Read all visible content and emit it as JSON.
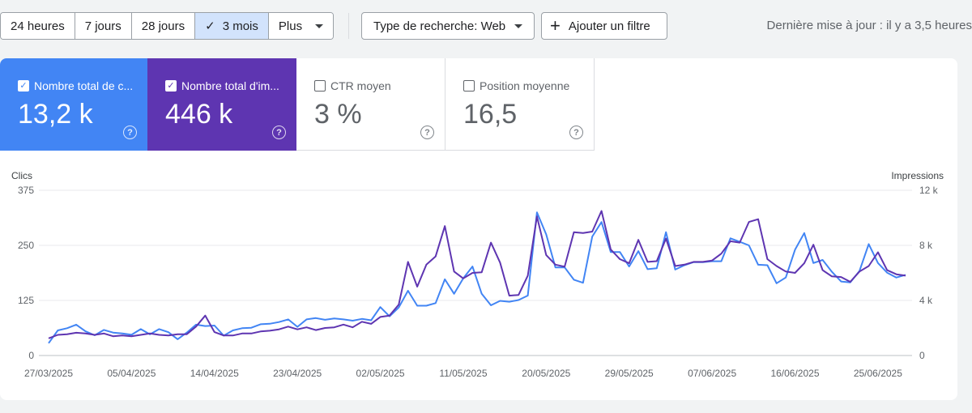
{
  "toolbar": {
    "ranges": [
      {
        "label": "24 heures",
        "selected": false
      },
      {
        "label": "7 jours",
        "selected": false
      },
      {
        "label": "28 jours",
        "selected": false
      },
      {
        "label": "3 mois",
        "selected": true
      },
      {
        "label": "Plus",
        "selected": false
      }
    ],
    "search_type_label": "Type de recherche: Web",
    "add_filter_label": "Ajouter un filtre",
    "last_update": "Dernière mise à jour : il y a 3,5 heures"
  },
  "metrics": {
    "clicks": {
      "label": "Nombre total de c...",
      "value": "13,2 k",
      "checked": true,
      "color": "#4285f4"
    },
    "impressions": {
      "label": "Nombre total d'im...",
      "value": "446 k",
      "checked": true,
      "color": "#5e35b1"
    },
    "ctr": {
      "label": "CTR moyen",
      "value": "3 %",
      "checked": false
    },
    "position": {
      "label": "Position moyenne",
      "value": "16,5",
      "checked": false
    }
  },
  "chart_data": {
    "type": "line",
    "y_left_label": "Clics",
    "y_right_label": "Impressions",
    "y_left_ticks": [
      "375",
      "250",
      "125",
      "0"
    ],
    "y_right_ticks": [
      "12 k",
      "8 k",
      "4 k",
      "0"
    ],
    "ylim_left": [
      0,
      375
    ],
    "ylim_right": [
      0,
      12000
    ],
    "x_ticks": [
      "27/03/2025",
      "05/04/2025",
      "14/04/2025",
      "23/04/2025",
      "02/05/2025",
      "11/05/2025",
      "20/05/2025",
      "29/05/2025",
      "07/06/2025",
      "16/06/2025",
      "25/06/2025"
    ],
    "grid": true,
    "series": [
      {
        "name": "Clics",
        "axis": "left",
        "color": "#4285f4",
        "values": [
          28,
          57,
          62,
          70,
          55,
          46,
          58,
          52,
          50,
          47,
          60,
          48,
          60,
          53,
          37,
          52,
          70,
          67,
          68,
          45,
          57,
          62,
          63,
          71,
          72,
          76,
          82,
          65,
          82,
          85,
          81,
          84,
          82,
          79,
          83,
          80,
          110,
          89,
          109,
          147,
          113,
          113,
          119,
          173,
          140,
          175,
          202,
          140,
          114,
          124,
          122,
          126,
          136,
          325,
          275,
          200,
          200,
          172,
          165,
          270,
          303,
          235,
          235,
          202,
          237,
          196,
          198,
          280,
          195,
          205,
          212,
          212,
          214,
          214,
          266,
          258,
          250,
          206,
          205,
          164,
          177,
          240,
          278,
          210,
          217,
          190,
          168,
          166,
          192,
          253,
          210,
          188,
          177,
          183
        ]
      },
      {
        "name": "Impressions",
        "axis": "right",
        "color": "#5e35b1",
        "values": [
          1250,
          1500,
          1550,
          1650,
          1600,
          1500,
          1600,
          1400,
          1450,
          1400,
          1500,
          1600,
          1500,
          1450,
          1550,
          1550,
          2100,
          2900,
          1700,
          1450,
          1450,
          1600,
          1600,
          1750,
          1800,
          1900,
          2100,
          1900,
          2050,
          1850,
          2000,
          2050,
          2250,
          2050,
          2450,
          2300,
          2800,
          2900,
          3700,
          6800,
          5000,
          6600,
          7200,
          9400,
          6100,
          5600,
          6000,
          6050,
          8200,
          6750,
          4350,
          4400,
          5800,
          10100,
          7300,
          6600,
          6450,
          8950,
          8900,
          9000,
          10500,
          7700,
          7000,
          6700,
          8400,
          6800,
          6850,
          8500,
          6500,
          6600,
          6800,
          6800,
          6900,
          7400,
          8300,
          8200,
          9700,
          9900,
          7000,
          6500,
          6100,
          6000,
          6700,
          8050,
          6200,
          5750,
          5700,
          5350,
          6100,
          6500,
          7500,
          6200,
          5900,
          5800
        ]
      }
    ]
  }
}
